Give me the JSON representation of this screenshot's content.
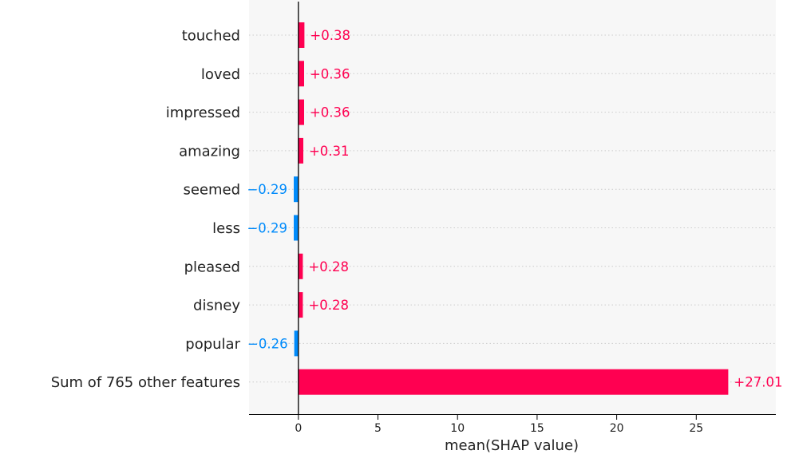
{
  "chart_data": {
    "type": "bar",
    "orientation": "horizontal",
    "categories": [
      "touched",
      "loved",
      "impressed",
      "amazing",
      "seemed",
      "less",
      "pleased",
      "disney",
      "popular",
      "Sum of 765 other features"
    ],
    "values": [
      0.38,
      0.36,
      0.36,
      0.31,
      -0.29,
      -0.29,
      0.28,
      0.28,
      -0.26,
      27.01
    ],
    "value_labels": [
      "+0.38",
      "+0.36",
      "+0.36",
      "+0.31",
      "−0.29",
      "−0.29",
      "+0.28",
      "+0.28",
      "−0.26",
      "+27.01"
    ],
    "xlabel": "mean(SHAP value)",
    "xticks": [
      0,
      5,
      10,
      15,
      20,
      25
    ],
    "xlim": [
      -3.1,
      30
    ],
    "grid": "horizontal dotted per row",
    "colors": {
      "positive": "#ff0051",
      "negative": "#008bfb",
      "zero_line": "#000000",
      "grid": "#cccccc",
      "text": "#222222",
      "background": "#f7f7f7"
    }
  }
}
